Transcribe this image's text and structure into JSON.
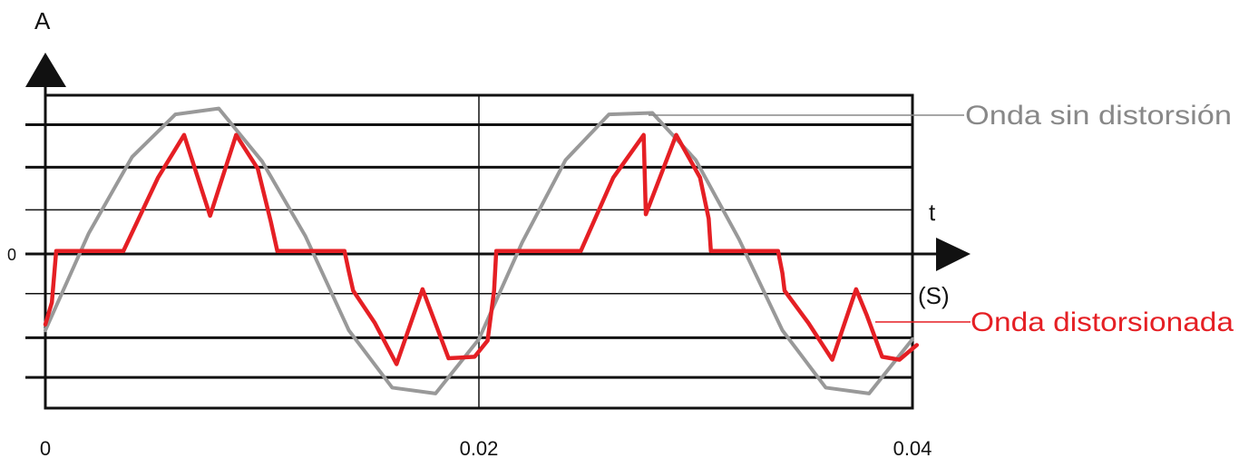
{
  "chart_data": {
    "type": "line",
    "ylabel": "A",
    "xlabel": "t",
    "x_unit": "(S)",
    "y_zero_label": "0",
    "x_ticks": [
      "0",
      "0.02",
      "0.04"
    ],
    "xlim": [
      0,
      0.04
    ],
    "ylim": [
      -1,
      1
    ],
    "grid": true,
    "series": [
      {
        "name": "Onda sin distorsión",
        "color": "#999999",
        "x": [
          0,
          0.002,
          0.004,
          0.006,
          0.008,
          0.01,
          0.012,
          0.014,
          0.016,
          0.018,
          0.02,
          0.022,
          0.024,
          0.026,
          0.028,
          0.03,
          0.032,
          0.034,
          0.036,
          0.038,
          0.04
        ],
        "y": [
          -0.52,
          0.14,
          0.66,
          0.95,
          0.99,
          0.63,
          0.12,
          -0.52,
          -0.91,
          -0.95,
          -0.58,
          0.08,
          0.64,
          0.95,
          0.96,
          0.64,
          0.1,
          -0.52,
          -0.91,
          -0.95,
          -0.58
        ]
      },
      {
        "name": "Onda distorsionada",
        "color": "#e51f24",
        "x": [
          0,
          0.0003,
          0.0005,
          0.0036,
          0.0052,
          0.0064,
          0.0076,
          0.0088,
          0.0098,
          0.0104,
          0.0107,
          0.0117,
          0.0138,
          0.014,
          0.0142,
          0.0152,
          0.0162,
          0.0174,
          0.0186,
          0.0198,
          0.0204,
          0.0207,
          0.0208,
          0.0247,
          0.0262,
          0.0276,
          0.0277,
          0.0291,
          0.0302,
          0.0306,
          0.0307,
          0.0338,
          0.034,
          0.0341,
          0.0352,
          0.0363,
          0.0374,
          0.0379,
          0.0386,
          0.0394,
          0.0402
        ],
        "y": [
          -0.48,
          -0.33,
          0.02,
          0.02,
          0.52,
          0.81,
          0.26,
          0.81,
          0.58,
          0.22,
          0.02,
          0.02,
          0.02,
          -0.12,
          -0.25,
          -0.47,
          -0.75,
          -0.24,
          -0.71,
          -0.7,
          -0.59,
          -0.25,
          0.02,
          0.02,
          0.52,
          0.81,
          0.27,
          0.81,
          0.52,
          0.24,
          0.02,
          0.02,
          -0.13,
          -0.25,
          -0.47,
          -0.72,
          -0.24,
          -0.42,
          -0.7,
          -0.72,
          -0.62
        ]
      }
    ]
  }
}
